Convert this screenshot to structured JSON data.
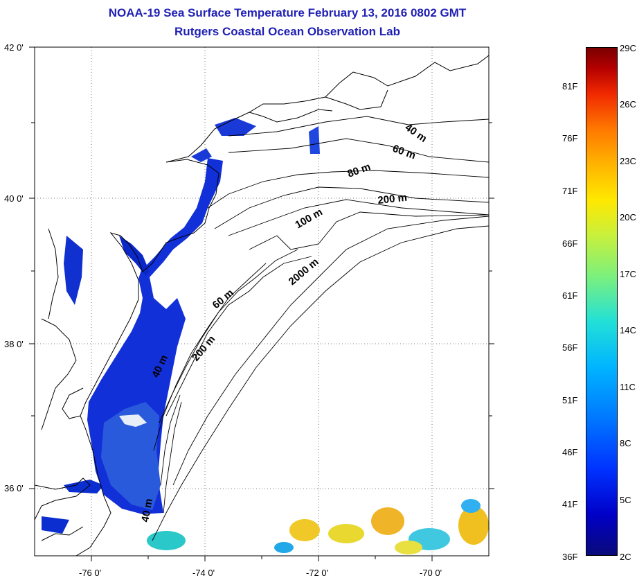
{
  "title": {
    "line1": "NOAA-19 Sea Surface Temperature February 13, 2016 0802 GMT",
    "line2": "Rutgers Coastal Ocean Observation Lab"
  },
  "axes": {
    "lat_labels": [
      "42 0'",
      "40 0'",
      "38 0'",
      "36 0'"
    ],
    "lon_labels": [
      "-76 0'",
      "-74 0'",
      "-72 0'",
      "-70 0'"
    ]
  },
  "depth_contours": {
    "labels": [
      "40 m",
      "60 m",
      "80 m",
      "200 m",
      "100 m",
      "2000 m",
      "60 m",
      "200 m",
      "40 m",
      "40 m"
    ]
  },
  "colorbar": {
    "fahrenheit": [
      "81F",
      "76F",
      "71F",
      "66F",
      "61F",
      "56F",
      "51F",
      "46F",
      "41F",
      "36F"
    ],
    "celsius": [
      "29C",
      "26C",
      "23C",
      "20C",
      "17C",
      "14C",
      "11C",
      "8C",
      "5C",
      "2C"
    ],
    "colors": [
      "#0a0a7a",
      "#0000c8",
      "#0078ff",
      "#22e0d8",
      "#7cf07c",
      "#ffe800",
      "#ff7800",
      "#b40000",
      "#7a0000"
    ]
  }
}
